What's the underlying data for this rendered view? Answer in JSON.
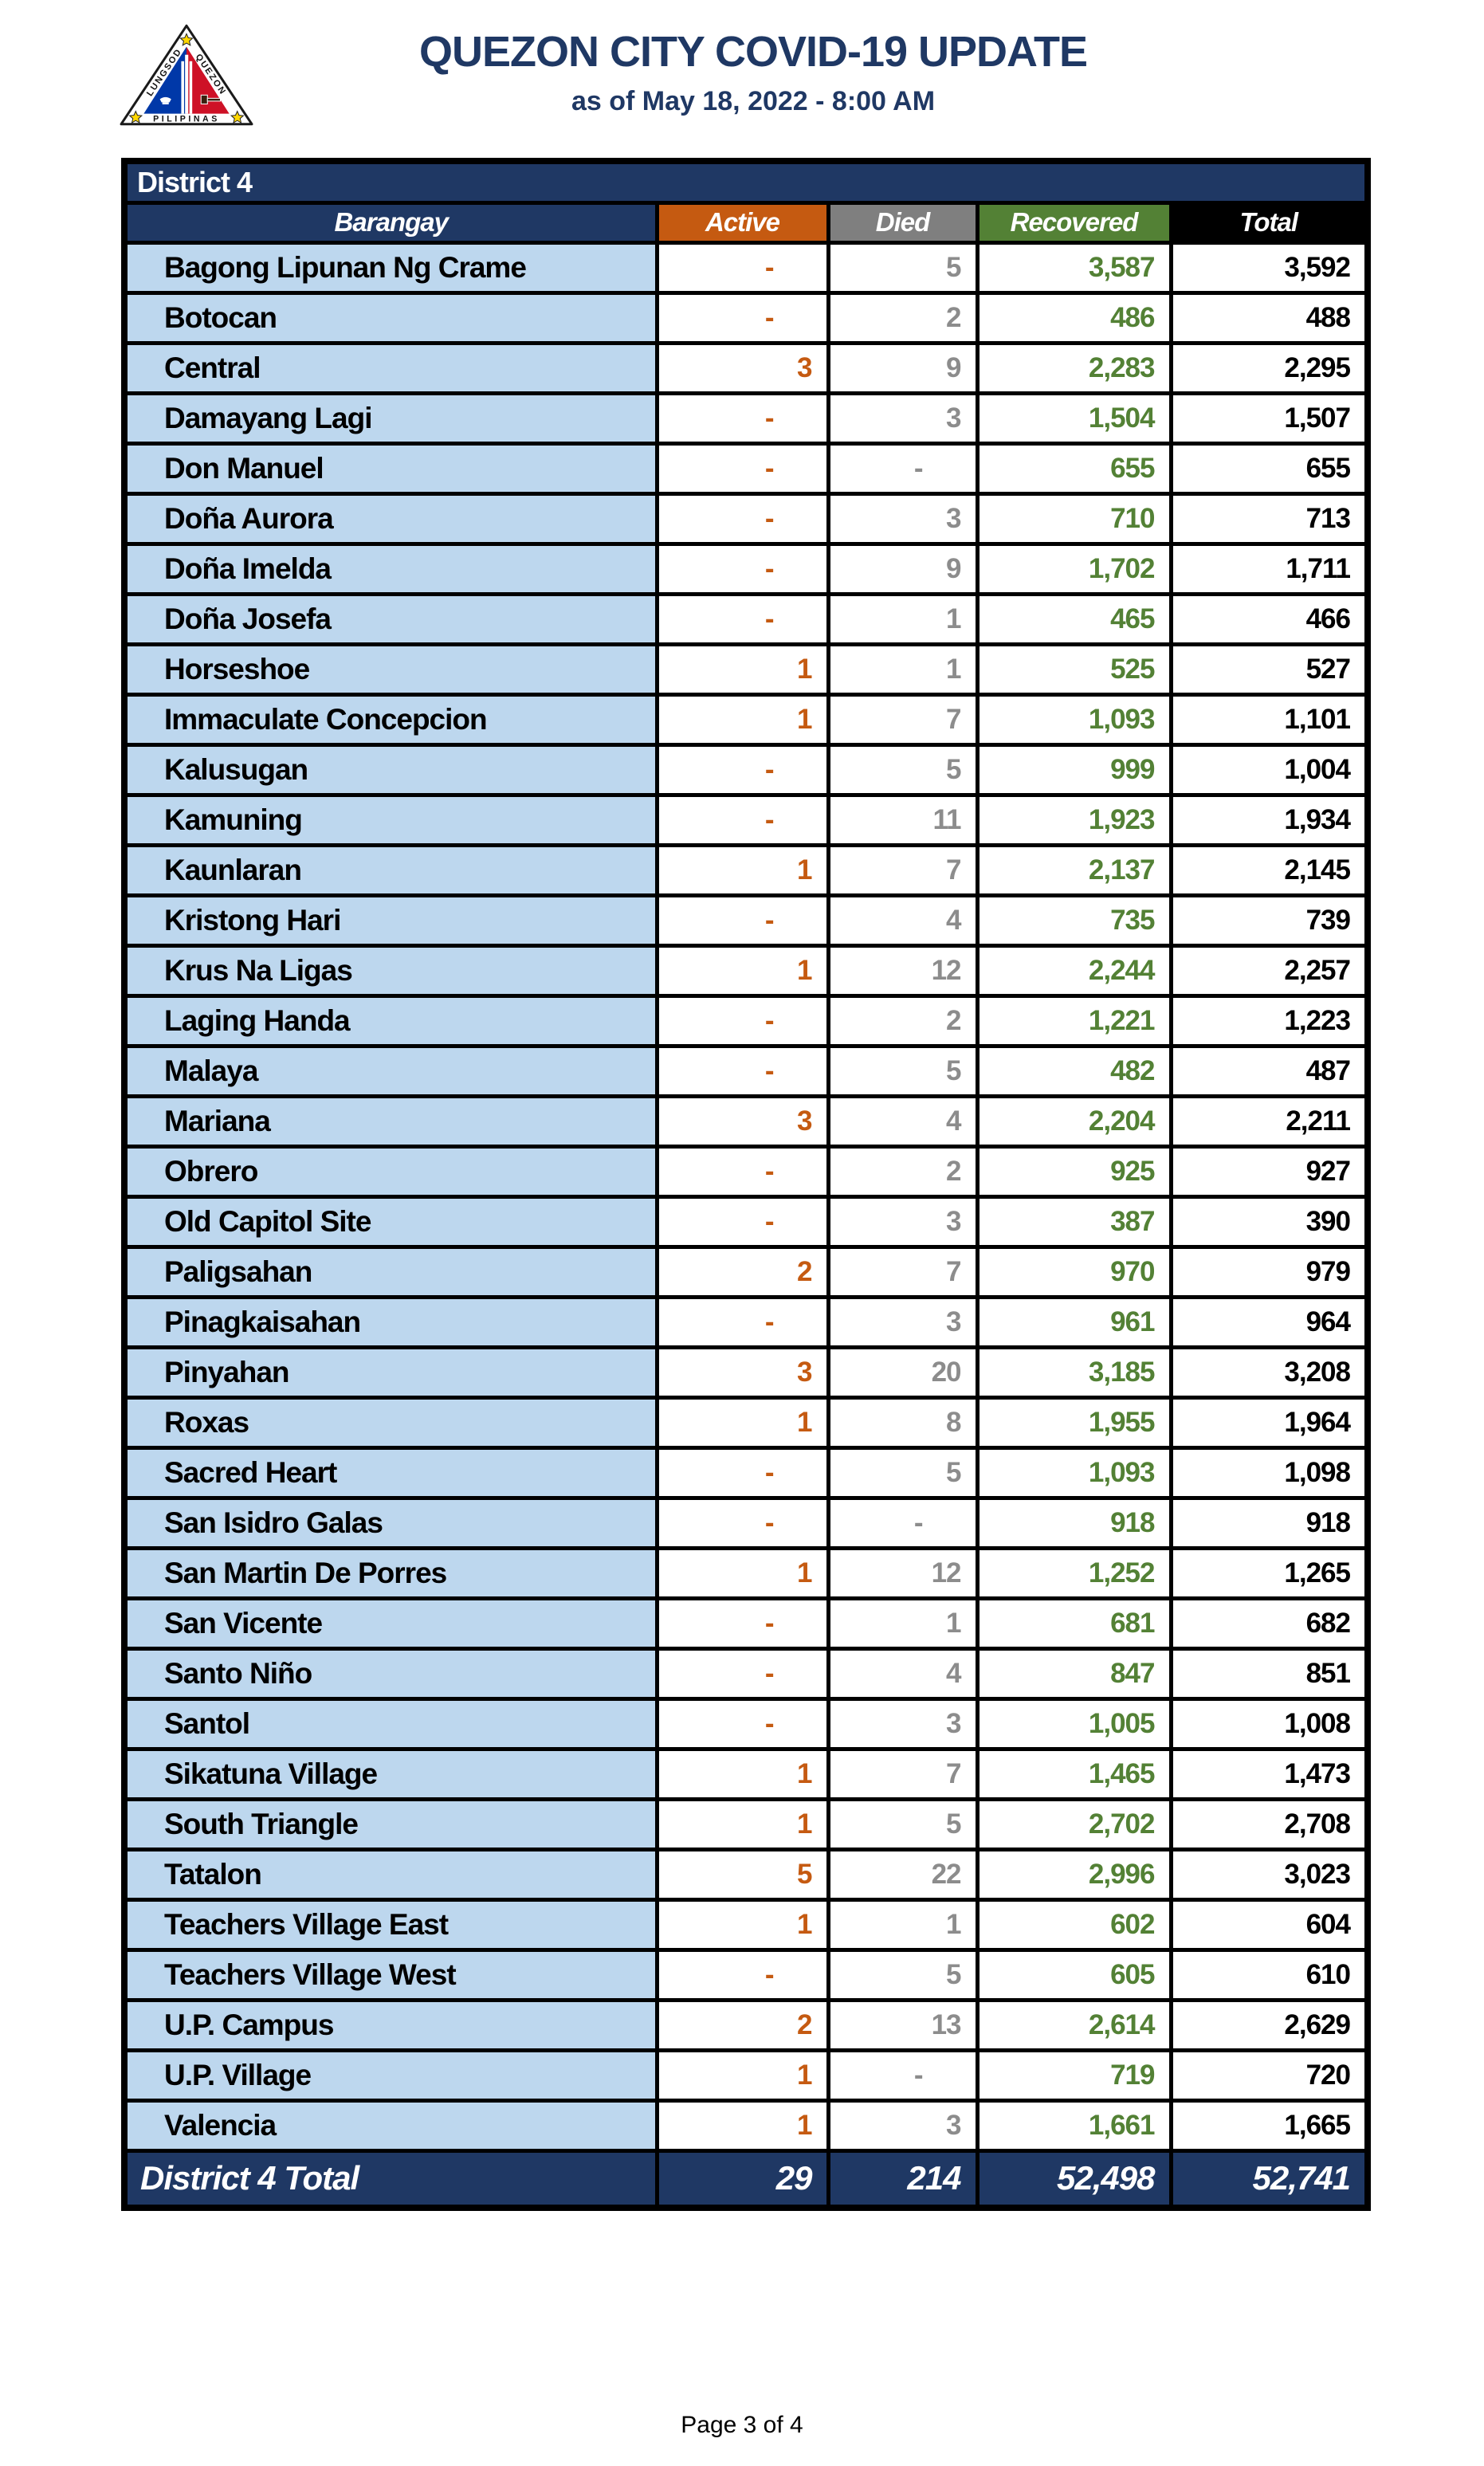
{
  "page": {
    "title": "QUEZON CITY COVID-19 UPDATE",
    "subtitle": "as of May 18, 2022 - 8:00 AM",
    "footer": "Page 3 of 4"
  },
  "logo": {
    "left_text": "LUNGSOD",
    "right_text": "QUEZON",
    "bottom_text": "PILIPINAS"
  },
  "table": {
    "district_label": "District 4",
    "columns": [
      "Barangay",
      "Active",
      "Died",
      "Recovered",
      "Total"
    ],
    "rows": [
      {
        "barangay": "Bagong Lipunan Ng Crame",
        "active": "-",
        "died": "5",
        "recovered": "3,587",
        "total": "3,592"
      },
      {
        "barangay": "Botocan",
        "active": "-",
        "died": "2",
        "recovered": "486",
        "total": "488"
      },
      {
        "barangay": "Central",
        "active": "3",
        "died": "9",
        "recovered": "2,283",
        "total": "2,295"
      },
      {
        "barangay": "Damayang Lagi",
        "active": "-",
        "died": "3",
        "recovered": "1,504",
        "total": "1,507"
      },
      {
        "barangay": "Don Manuel",
        "active": "-",
        "died": "-",
        "recovered": "655",
        "total": "655"
      },
      {
        "barangay": "Doña Aurora",
        "active": "-",
        "died": "3",
        "recovered": "710",
        "total": "713"
      },
      {
        "barangay": "Doña Imelda",
        "active": "-",
        "died": "9",
        "recovered": "1,702",
        "total": "1,711"
      },
      {
        "barangay": "Doña Josefa",
        "active": "-",
        "died": "1",
        "recovered": "465",
        "total": "466"
      },
      {
        "barangay": "Horseshoe",
        "active": "1",
        "died": "1",
        "recovered": "525",
        "total": "527"
      },
      {
        "barangay": "Immaculate Concepcion",
        "active": "1",
        "died": "7",
        "recovered": "1,093",
        "total": "1,101"
      },
      {
        "barangay": "Kalusugan",
        "active": "-",
        "died": "5",
        "recovered": "999",
        "total": "1,004"
      },
      {
        "barangay": "Kamuning",
        "active": "-",
        "died": "11",
        "recovered": "1,923",
        "total": "1,934"
      },
      {
        "barangay": "Kaunlaran",
        "active": "1",
        "died": "7",
        "recovered": "2,137",
        "total": "2,145"
      },
      {
        "barangay": "Kristong Hari",
        "active": "-",
        "died": "4",
        "recovered": "735",
        "total": "739"
      },
      {
        "barangay": "Krus Na Ligas",
        "active": "1",
        "died": "12",
        "recovered": "2,244",
        "total": "2,257"
      },
      {
        "barangay": "Laging Handa",
        "active": "-",
        "died": "2",
        "recovered": "1,221",
        "total": "1,223"
      },
      {
        "barangay": "Malaya",
        "active": "-",
        "died": "5",
        "recovered": "482",
        "total": "487"
      },
      {
        "barangay": "Mariana",
        "active": "3",
        "died": "4",
        "recovered": "2,204",
        "total": "2,211"
      },
      {
        "barangay": "Obrero",
        "active": "-",
        "died": "2",
        "recovered": "925",
        "total": "927"
      },
      {
        "barangay": "Old Capitol Site",
        "active": "-",
        "died": "3",
        "recovered": "387",
        "total": "390"
      },
      {
        "barangay": "Paligsahan",
        "active": "2",
        "died": "7",
        "recovered": "970",
        "total": "979"
      },
      {
        "barangay": "Pinagkaisahan",
        "active": "-",
        "died": "3",
        "recovered": "961",
        "total": "964"
      },
      {
        "barangay": "Pinyahan",
        "active": "3",
        "died": "20",
        "recovered": "3,185",
        "total": "3,208"
      },
      {
        "barangay": "Roxas",
        "active": "1",
        "died": "8",
        "recovered": "1,955",
        "total": "1,964"
      },
      {
        "barangay": "Sacred Heart",
        "active": "-",
        "died": "5",
        "recovered": "1,093",
        "total": "1,098"
      },
      {
        "barangay": "San Isidro Galas",
        "active": "-",
        "died": "-",
        "recovered": "918",
        "total": "918"
      },
      {
        "barangay": "San Martin De Porres",
        "active": "1",
        "died": "12",
        "recovered": "1,252",
        "total": "1,265"
      },
      {
        "barangay": "San Vicente",
        "active": "-",
        "died": "1",
        "recovered": "681",
        "total": "682"
      },
      {
        "barangay": "Santo Niño",
        "active": "-",
        "died": "4",
        "recovered": "847",
        "total": "851"
      },
      {
        "barangay": "Santol",
        "active": "-",
        "died": "3",
        "recovered": "1,005",
        "total": "1,008"
      },
      {
        "barangay": "Sikatuna Village",
        "active": "1",
        "died": "7",
        "recovered": "1,465",
        "total": "1,473"
      },
      {
        "barangay": "South Triangle",
        "active": "1",
        "died": "5",
        "recovered": "2,702",
        "total": "2,708"
      },
      {
        "barangay": "Tatalon",
        "active": "5",
        "died": "22",
        "recovered": "2,996",
        "total": "3,023"
      },
      {
        "barangay": "Teachers Village East",
        "active": "1",
        "died": "1",
        "recovered": "602",
        "total": "604"
      },
      {
        "barangay": "Teachers Village West",
        "active": "-",
        "died": "5",
        "recovered": "605",
        "total": "610"
      },
      {
        "barangay": "U.P. Campus",
        "active": "2",
        "died": "13",
        "recovered": "2,614",
        "total": "2,629"
      },
      {
        "barangay": "U.P. Village",
        "active": "1",
        "died": "-",
        "recovered": "719",
        "total": "720"
      },
      {
        "barangay": "Valencia",
        "active": "1",
        "died": "3",
        "recovered": "1,661",
        "total": "1,665"
      }
    ],
    "total_row": {
      "label": "District 4 Total",
      "active": "29",
      "died": "214",
      "recovered": "52,498",
      "total": "52,741"
    }
  },
  "colors": {
    "navy": "#1F3864",
    "active_orange": "#C55A11",
    "died_gray_header": "#7F7F7F",
    "died_gray_value": "#8C8C8C",
    "recovered_green": "#538135",
    "total_black": "#000000",
    "barangay_blue": "#BDD7EE",
    "flag_blue": "#0038A8",
    "flag_red": "#CE1126",
    "star_yellow": "#FFD700"
  }
}
